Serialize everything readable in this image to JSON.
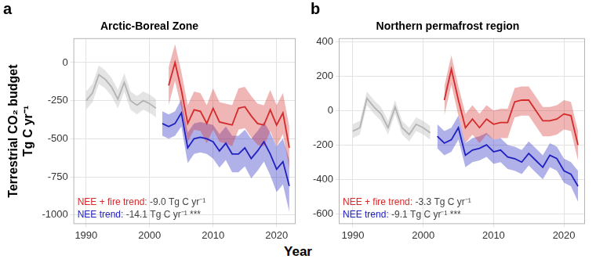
{
  "x_label": "Year",
  "chart_data": [
    {
      "type": "line",
      "panel": "a",
      "title": "Arctic-Boreal Zone",
      "y_label": [
        "Terrestrial CO₂ budget",
        "Tg C yr⁻¹"
      ],
      "x": [
        1990,
        1991,
        1992,
        1993,
        1994,
        1995,
        1996,
        1997,
        1998,
        1999,
        2000,
        2001,
        2002,
        2003,
        2004,
        2005,
        2006,
        2007,
        2008,
        2009,
        2010,
        2011,
        2012,
        2013,
        2014,
        2015,
        2016,
        2017,
        2018,
        2019,
        2020,
        2021,
        2022
      ],
      "xlim": [
        1988,
        2023
      ],
      "xticks": [
        1990,
        2000,
        2010,
        2020
      ],
      "ylim": [
        -1060,
        160
      ],
      "yticks": [
        -1000,
        -750,
        -500,
        -250,
        0
      ],
      "grid": true,
      "series": [
        {
          "color": "#b3b3b3",
          "values": [
            -250,
            -200,
            -80,
            -110,
            -160,
            -240,
            -130,
            -250,
            -280,
            -250,
            -270,
            -300,
            null,
            null,
            null,
            null,
            null,
            null,
            null,
            null,
            null,
            null,
            null,
            null,
            null,
            null,
            null,
            null,
            null,
            null,
            null,
            null,
            null
          ],
          "lower": [
            -310,
            -260,
            -140,
            -170,
            -220,
            -300,
            -190,
            -310,
            -340,
            -310,
            -330,
            -360,
            null,
            null,
            null,
            null,
            null,
            null,
            null,
            null,
            null,
            null,
            null,
            null,
            null,
            null,
            null,
            null,
            null,
            null,
            null,
            null,
            null
          ],
          "upper": [
            -190,
            -140,
            -20,
            -50,
            -100,
            -180,
            -70,
            -190,
            -220,
            -190,
            -210,
            -240,
            null,
            null,
            null,
            null,
            null,
            null,
            null,
            null,
            null,
            null,
            null,
            null,
            null,
            null,
            null,
            null,
            null,
            null,
            null,
            null,
            null
          ]
        },
        {
          "color": "#d42a2a",
          "annotation": "NEE + fire trend:",
          "annotation_value": "-9.0 Tg C yr⁻¹",
          "values": [
            null,
            null,
            null,
            null,
            null,
            null,
            null,
            null,
            null,
            null,
            null,
            null,
            null,
            -150,
            0,
            -180,
            -400,
            -310,
            -320,
            -400,
            -300,
            -390,
            -400,
            -410,
            -300,
            -290,
            -350,
            -400,
            -410,
            -310,
            -410,
            -330,
            -560
          ],
          "lower": [
            null,
            null,
            null,
            null,
            null,
            null,
            null,
            null,
            null,
            null,
            null,
            null,
            null,
            -280,
            -120,
            -300,
            -520,
            -440,
            -450,
            -530,
            -440,
            -520,
            -530,
            -550,
            -440,
            -430,
            -490,
            -540,
            -550,
            -450,
            -550,
            -470,
            -700
          ],
          "upper": [
            null,
            null,
            null,
            null,
            null,
            null,
            null,
            null,
            null,
            null,
            null,
            null,
            null,
            -30,
            120,
            -60,
            -280,
            -190,
            -200,
            -280,
            -170,
            -260,
            -270,
            -280,
            -170,
            -160,
            -220,
            -270,
            -280,
            -180,
            -280,
            -200,
            -420
          ]
        },
        {
          "color": "#2020c0",
          "annotation": "NEE trend:",
          "annotation_value": "-14.1 Tg C yr⁻¹ ***",
          "values": [
            null,
            null,
            null,
            null,
            null,
            null,
            null,
            null,
            null,
            null,
            null,
            null,
            -400,
            -420,
            -400,
            -330,
            -560,
            -500,
            -490,
            -500,
            -520,
            -580,
            -530,
            -600,
            -600,
            -560,
            -630,
            -580,
            -520,
            -600,
            -700,
            -650,
            -810
          ],
          "lower": [
            null,
            null,
            null,
            null,
            null,
            null,
            null,
            null,
            null,
            null,
            null,
            null,
            -480,
            -500,
            -480,
            -420,
            -660,
            -600,
            -590,
            -600,
            -630,
            -690,
            -640,
            -720,
            -720,
            -680,
            -760,
            -710,
            -650,
            -740,
            -850,
            -800,
            -980
          ],
          "upper": [
            null,
            null,
            null,
            null,
            null,
            null,
            null,
            null,
            null,
            null,
            null,
            null,
            -320,
            -340,
            -320,
            -240,
            -460,
            -400,
            -390,
            -400,
            -410,
            -470,
            -420,
            -480,
            -480,
            -440,
            -500,
            -450,
            -390,
            -460,
            -550,
            -500,
            -640
          ]
        }
      ]
    },
    {
      "type": "line",
      "panel": "b",
      "title": "Northern permafrost region",
      "x": [
        1990,
        1991,
        1992,
        1993,
        1994,
        1995,
        1996,
        1997,
        1998,
        1999,
        2000,
        2001,
        2002,
        2003,
        2004,
        2005,
        2006,
        2007,
        2008,
        2009,
        2010,
        2011,
        2012,
        2013,
        2014,
        2015,
        2016,
        2017,
        2018,
        2019,
        2020,
        2021,
        2022
      ],
      "xlim": [
        1988,
        2023
      ],
      "xticks": [
        1990,
        2000,
        2010,
        2020
      ],
      "ylim": [
        -660,
        420
      ],
      "yticks": [
        -600,
        -400,
        -200,
        0,
        200,
        400
      ],
      "grid": true,
      "series": [
        {
          "color": "#b3b3b3",
          "values": [
            -120,
            -100,
            70,
            20,
            -20,
            -100,
            20,
            -100,
            -140,
            -80,
            -100,
            -130,
            null,
            null,
            null,
            null,
            null,
            null,
            null,
            null,
            null,
            null,
            null,
            null,
            null,
            null,
            null,
            null,
            null,
            null,
            null,
            null,
            null
          ],
          "lower": [
            -160,
            -140,
            30,
            -20,
            -60,
            -140,
            -20,
            -140,
            -180,
            -120,
            -140,
            -170,
            null,
            null,
            null,
            null,
            null,
            null,
            null,
            null,
            null,
            null,
            null,
            null,
            null,
            null,
            null,
            null,
            null,
            null,
            null,
            null,
            null
          ],
          "upper": [
            -80,
            -60,
            110,
            60,
            20,
            -60,
            60,
            -60,
            -100,
            -40,
            -60,
            -90,
            null,
            null,
            null,
            null,
            null,
            null,
            null,
            null,
            null,
            null,
            null,
            null,
            null,
            null,
            null,
            null,
            null,
            null,
            null,
            null,
            null
          ]
        },
        {
          "color": "#d42a2a",
          "annotation": "NEE + fire trend:",
          "annotation_value": "-3.3 Tg C yr⁻¹",
          "values": [
            null,
            null,
            null,
            null,
            null,
            null,
            null,
            null,
            null,
            null,
            null,
            null,
            null,
            60,
            240,
            60,
            -100,
            -50,
            -100,
            -50,
            -80,
            -70,
            -70,
            50,
            60,
            60,
            0,
            -60,
            -60,
            -50,
            -20,
            -30,
            -200
          ],
          "lower": [
            null,
            null,
            null,
            null,
            null,
            null,
            null,
            null,
            null,
            null,
            null,
            null,
            null,
            -30,
            150,
            -30,
            -190,
            -140,
            -190,
            -140,
            -170,
            -160,
            -160,
            -40,
            -30,
            -30,
            -90,
            -150,
            -150,
            -140,
            -110,
            -120,
            -290
          ],
          "upper": [
            null,
            null,
            null,
            null,
            null,
            null,
            null,
            null,
            null,
            null,
            null,
            null,
            null,
            140,
            320,
            140,
            -20,
            30,
            -20,
            30,
            0,
            10,
            10,
            130,
            140,
            140,
            80,
            20,
            20,
            30,
            60,
            50,
            -120
          ]
        },
        {
          "color": "#2020c0",
          "annotation": "NEE trend:",
          "annotation_value": "-9.1 Tg C yr⁻¹ ***",
          "values": [
            null,
            null,
            null,
            null,
            null,
            null,
            null,
            null,
            null,
            null,
            null,
            null,
            -150,
            -190,
            -170,
            -100,
            -260,
            -230,
            -220,
            -200,
            -240,
            -230,
            -270,
            -280,
            -300,
            -250,
            -290,
            -330,
            -260,
            -280,
            -350,
            -370,
            -440
          ],
          "lower": [
            null,
            null,
            null,
            null,
            null,
            null,
            null,
            null,
            null,
            null,
            null,
            null,
            -220,
            -260,
            -240,
            -170,
            -330,
            -300,
            -290,
            -270,
            -310,
            -300,
            -340,
            -350,
            -370,
            -320,
            -360,
            -400,
            -330,
            -350,
            -420,
            -440,
            -530
          ],
          "upper": [
            null,
            null,
            null,
            null,
            null,
            null,
            null,
            null,
            null,
            null,
            null,
            null,
            -80,
            -120,
            -100,
            -30,
            -190,
            -160,
            -150,
            -130,
            -170,
            -160,
            -200,
            -210,
            -230,
            -180,
            -220,
            -260,
            -190,
            -210,
            -280,
            -300,
            -350
          ]
        }
      ]
    }
  ]
}
